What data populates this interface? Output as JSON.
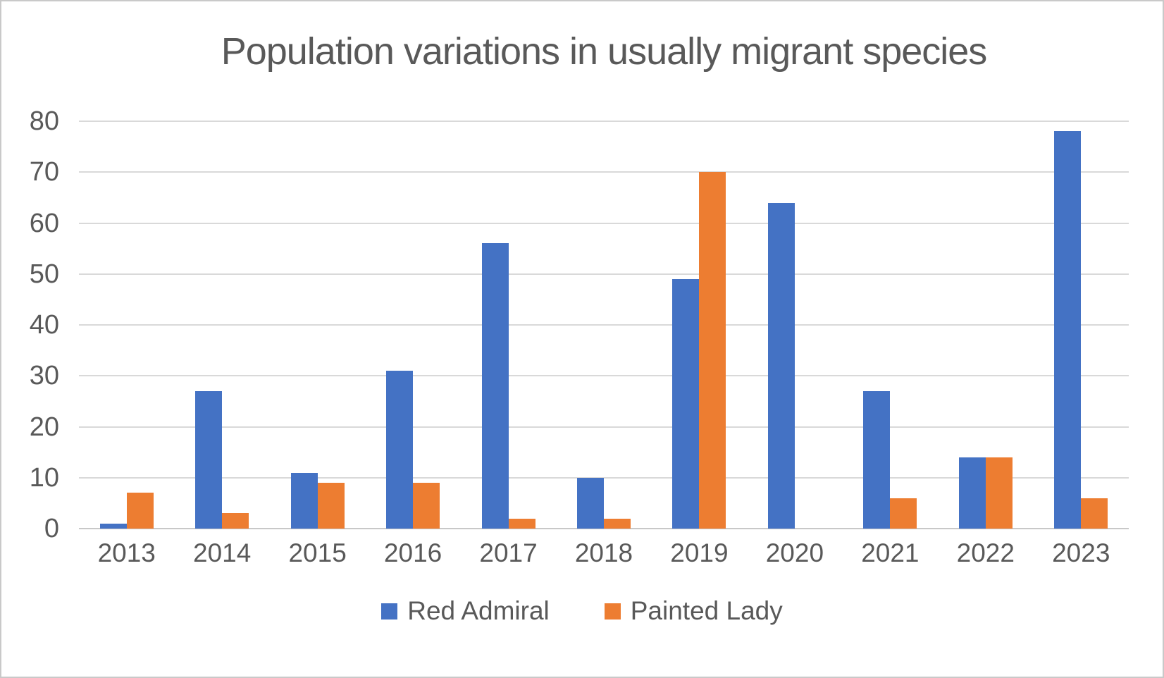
{
  "chart_data": {
    "type": "bar",
    "title": "Population variations in usually migrant species",
    "categories": [
      "2013",
      "2014",
      "2015",
      "2016",
      "2017",
      "2018",
      "2019",
      "2020",
      "2021",
      "2022",
      "2023"
    ],
    "series": [
      {
        "name": "Red Admiral",
        "color": "#4472C4",
        "values": [
          1,
          27,
          11,
          31,
          56,
          10,
          49,
          64,
          27,
          14,
          78
        ]
      },
      {
        "name": "Painted Lady",
        "color": "#ED7D31",
        "values": [
          7,
          3,
          9,
          9,
          2,
          2,
          70,
          0,
          6,
          14,
          6
        ]
      }
    ],
    "xlabel": "",
    "ylabel": "",
    "ylim": [
      0,
      80
    ],
    "yticks": [
      0,
      10,
      20,
      30,
      40,
      50,
      60,
      70,
      80
    ],
    "grid": "horizontal",
    "legend_position": "bottom"
  },
  "colors": {
    "background": "#FFFFFF",
    "border": "#C9C9C9",
    "title_text": "#595959",
    "axis_text": "#595959",
    "gridline": "#D9D9D9",
    "axis_line": "#C8C8C8",
    "series_blue": "#4472C4",
    "series_orange": "#ED7D31"
  }
}
